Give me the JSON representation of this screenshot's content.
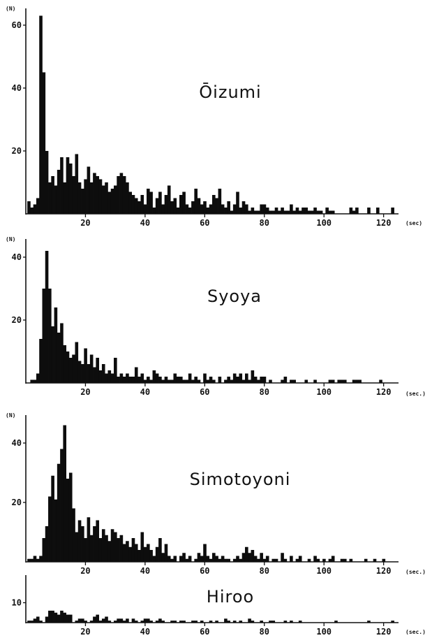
{
  "chart_data": [
    {
      "type": "bar",
      "title": "Ōizumi",
      "ylabel": "(N)",
      "xlabel": "(sec)",
      "xlim": [
        0,
        125
      ],
      "ylim": [
        0,
        65
      ],
      "xticks": [
        20,
        40,
        60,
        80,
        100,
        120
      ],
      "yticks": [
        20,
        40,
        60
      ],
      "bin_width": 1,
      "x": [
        1,
        2,
        3,
        4,
        5,
        6,
        7,
        8,
        9,
        10,
        11,
        12,
        13,
        14,
        15,
        16,
        17,
        18,
        19,
        20,
        21,
        22,
        23,
        24,
        25,
        26,
        27,
        28,
        29,
        30,
        31,
        32,
        33,
        34,
        35,
        36,
        37,
        38,
        39,
        40,
        41,
        42,
        43,
        44,
        45,
        46,
        47,
        48,
        49,
        50,
        51,
        52,
        53,
        54,
        55,
        56,
        57,
        58,
        59,
        60,
        61,
        62,
        63,
        64,
        65,
        66,
        67,
        68,
        69,
        70,
        71,
        72,
        73,
        74,
        75,
        76,
        77,
        78,
        79,
        80,
        81,
        82,
        83,
        84,
        85,
        86,
        87,
        88,
        89,
        90,
        91,
        92,
        93,
        94,
        95,
        96,
        97,
        98,
        99,
        100,
        101,
        102,
        103,
        104,
        105,
        106,
        107,
        108,
        109,
        110,
        111,
        112,
        113,
        114,
        115,
        116,
        117,
        118,
        119,
        120,
        121,
        122,
        123,
        124
      ],
      "values": [
        4,
        2,
        3,
        5,
        63,
        45,
        20,
        10,
        12,
        9,
        14,
        18,
        10,
        18,
        16,
        12,
        19,
        10,
        8,
        11,
        15,
        10,
        13,
        12,
        11,
        9,
        10,
        7,
        8,
        9,
        12,
        13,
        12,
        10,
        7,
        6,
        5,
        4,
        6,
        3,
        8,
        7,
        2,
        5,
        7,
        3,
        6,
        9,
        4,
        5,
        2,
        6,
        7,
        3,
        2,
        4,
        8,
        5,
        3,
        4,
        2,
        3,
        6,
        5,
        8,
        3,
        2,
        4,
        1,
        3,
        7,
        2,
        4,
        3,
        1,
        2,
        1,
        1,
        3,
        3,
        2,
        1,
        1,
        2,
        1,
        2,
        1,
        1,
        3,
        1,
        2,
        1,
        2,
        2,
        1,
        1,
        2,
        1,
        1,
        0,
        2,
        1,
        1,
        0,
        0,
        0,
        0,
        0,
        2,
        1,
        2,
        0,
        0,
        0,
        2,
        0,
        0,
        2,
        0,
        0,
        0,
        0,
        2,
        0
      ]
    },
    {
      "type": "bar",
      "title": "Syoya",
      "ylabel": "(N)",
      "xlabel": "(sec.)",
      "xlim": [
        0,
        125
      ],
      "ylim": [
        0,
        45
      ],
      "xticks": [
        20,
        40,
        60,
        80,
        100,
        120
      ],
      "yticks": [
        20,
        40
      ],
      "bin_width": 1,
      "x": [
        1,
        2,
        3,
        4,
        5,
        6,
        7,
        8,
        9,
        10,
        11,
        12,
        13,
        14,
        15,
        16,
        17,
        18,
        19,
        20,
        21,
        22,
        23,
        24,
        25,
        26,
        27,
        28,
        29,
        30,
        31,
        32,
        33,
        34,
        35,
        36,
        37,
        38,
        39,
        40,
        41,
        42,
        43,
        44,
        45,
        46,
        47,
        48,
        49,
        50,
        51,
        52,
        53,
        54,
        55,
        56,
        57,
        58,
        59,
        60,
        61,
        62,
        63,
        64,
        65,
        66,
        67,
        68,
        69,
        70,
        71,
        72,
        73,
        74,
        75,
        76,
        77,
        78,
        79,
        80,
        81,
        82,
        83,
        84,
        85,
        86,
        87,
        88,
        89,
        90,
        91,
        92,
        93,
        94,
        95,
        96,
        97,
        98,
        99,
        100,
        101,
        102,
        103,
        104,
        105,
        106,
        107,
        108,
        109,
        110,
        111,
        112,
        113,
        114,
        115,
        116,
        117,
        118,
        119,
        120,
        121,
        122,
        123,
        124
      ],
      "values": [
        0,
        1,
        1,
        3,
        14,
        30,
        42,
        30,
        18,
        24,
        16,
        19,
        12,
        10,
        8,
        9,
        13,
        7,
        6,
        11,
        6,
        9,
        5,
        8,
        4,
        6,
        3,
        4,
        3,
        8,
        2,
        3,
        2,
        3,
        2,
        2,
        5,
        2,
        3,
        1,
        2,
        1,
        4,
        3,
        2,
        1,
        2,
        1,
        1,
        3,
        2,
        2,
        1,
        1,
        3,
        1,
        2,
        1,
        0,
        3,
        1,
        2,
        1,
        0,
        2,
        0,
        1,
        2,
        1,
        3,
        2,
        3,
        1,
        3,
        1,
        4,
        2,
        1,
        2,
        2,
        0,
        1,
        0,
        0,
        0,
        1,
        2,
        0,
        1,
        1,
        0,
        0,
        0,
        1,
        0,
        0,
        1,
        0,
        0,
        0,
        0,
        1,
        1,
        0,
        1,
        1,
        1,
        0,
        0,
        1,
        1,
        1,
        0,
        0,
        0,
        0,
        0,
        0,
        1,
        0,
        0,
        0,
        0,
        0
      ]
    },
    {
      "type": "bar",
      "title": "Simotoyoni",
      "ylabel": "(N)",
      "xlabel": "(sec.)",
      "xlim": [
        0,
        125
      ],
      "ylim": [
        0,
        48
      ],
      "xticks": [
        20,
        40,
        60,
        80,
        100,
        120
      ],
      "yticks": [
        20,
        40
      ],
      "bin_width": 1,
      "x": [
        1,
        2,
        3,
        4,
        5,
        6,
        7,
        8,
        9,
        10,
        11,
        12,
        13,
        14,
        15,
        16,
        17,
        18,
        19,
        20,
        21,
        22,
        23,
        24,
        25,
        26,
        27,
        28,
        29,
        30,
        31,
        32,
        33,
        34,
        35,
        36,
        37,
        38,
        39,
        40,
        41,
        42,
        43,
        44,
        45,
        46,
        47,
        48,
        49,
        50,
        51,
        52,
        53,
        54,
        55,
        56,
        57,
        58,
        59,
        60,
        61,
        62,
        63,
        64,
        65,
        66,
        67,
        68,
        69,
        70,
        71,
        72,
        73,
        74,
        75,
        76,
        77,
        78,
        79,
        80,
        81,
        82,
        83,
        84,
        85,
        86,
        87,
        88,
        89,
        90,
        91,
        92,
        93,
        94,
        95,
        96,
        97,
        98,
        99,
        100,
        101,
        102,
        103,
        104,
        105,
        106,
        107,
        108,
        109,
        110,
        111,
        112,
        113,
        114,
        115,
        116,
        117,
        118,
        119,
        120,
        121,
        122,
        123,
        124
      ],
      "values": [
        1,
        1,
        2,
        1,
        2,
        8,
        12,
        22,
        29,
        21,
        33,
        38,
        46,
        28,
        30,
        18,
        10,
        14,
        12,
        8,
        15,
        9,
        12,
        14,
        8,
        11,
        9,
        7,
        11,
        10,
        8,
        9,
        6,
        7,
        5,
        8,
        6,
        4,
        10,
        5,
        6,
        4,
        2,
        5,
        8,
        3,
        6,
        2,
        1,
        2,
        0,
        2,
        3,
        1,
        2,
        0,
        1,
        3,
        2,
        6,
        2,
        1,
        3,
        2,
        1,
        2,
        1,
        1,
        0,
        1,
        2,
        1,
        3,
        5,
        3,
        4,
        2,
        1,
        3,
        1,
        2,
        0,
        1,
        1,
        0,
        3,
        1,
        0,
        2,
        0,
        1,
        2,
        0,
        0,
        1,
        0,
        2,
        1,
        0,
        1,
        0,
        1,
        2,
        0,
        0,
        1,
        1,
        0,
        1,
        0,
        0,
        0,
        0,
        1,
        0,
        0,
        1,
        0,
        0,
        1,
        0,
        0,
        0,
        0
      ]
    },
    {
      "type": "bar",
      "title": "Hiroo",
      "xlabel": "(sec.)",
      "xlim": [
        0,
        125
      ],
      "ylim": [
        0,
        12
      ],
      "xticks": [
        20,
        40,
        60,
        80,
        100,
        120
      ],
      "yticks": [
        10
      ],
      "bin_width": 1,
      "x": [
        1,
        2,
        3,
        4,
        5,
        6,
        7,
        8,
        9,
        10,
        11,
        12,
        13,
        14,
        15,
        16,
        17,
        18,
        19,
        20,
        21,
        22,
        23,
        24,
        25,
        26,
        27,
        28,
        29,
        30,
        31,
        32,
        33,
        34,
        35,
        36,
        37,
        38,
        39,
        40,
        41,
        42,
        43,
        44,
        45,
        46,
        47,
        48,
        49,
        50,
        51,
        52,
        53,
        54,
        55,
        56,
        57,
        58,
        59,
        60,
        61,
        62,
        63,
        64,
        65,
        66,
        67,
        68,
        69,
        70,
        71,
        72,
        73,
        74,
        75,
        76,
        77,
        78,
        79,
        80,
        81,
        82,
        83,
        84,
        85,
        86,
        87,
        88,
        89,
        90,
        91,
        92,
        93,
        94,
        95,
        96,
        97,
        98,
        99,
        100,
        101,
        102,
        103,
        104,
        105,
        106,
        107,
        108,
        109,
        110,
        111,
        112,
        113,
        114,
        115,
        116,
        117,
        118,
        119,
        120,
        121,
        122,
        123,
        124
      ],
      "values": [
        1,
        1,
        2,
        3,
        1,
        0,
        3,
        6,
        6,
        5,
        4,
        6,
        5,
        4,
        4,
        0,
        1,
        2,
        2,
        1,
        0,
        1,
        3,
        4,
        1,
        2,
        3,
        1,
        0,
        1,
        2,
        2,
        1,
        2,
        0,
        2,
        1,
        0,
        1,
        2,
        2,
        1,
        0,
        1,
        2,
        1,
        0,
        0,
        1,
        1,
        0,
        1,
        1,
        0,
        0,
        1,
        1,
        0,
        1,
        0,
        0,
        1,
        0,
        1,
        0,
        0,
        2,
        1,
        0,
        1,
        0,
        1,
        0,
        0,
        2,
        1,
        0,
        0,
        1,
        0,
        0,
        1,
        1,
        0,
        0,
        0,
        1,
        0,
        1,
        0,
        0,
        1,
        0,
        0,
        0,
        0,
        0,
        0,
        0,
        0,
        0,
        0,
        0,
        1,
        0,
        0,
        0,
        0,
        0,
        0,
        0,
        0,
        0,
        0,
        1,
        0,
        0,
        0,
        0,
        0,
        0,
        0,
        1,
        0
      ]
    }
  ]
}
